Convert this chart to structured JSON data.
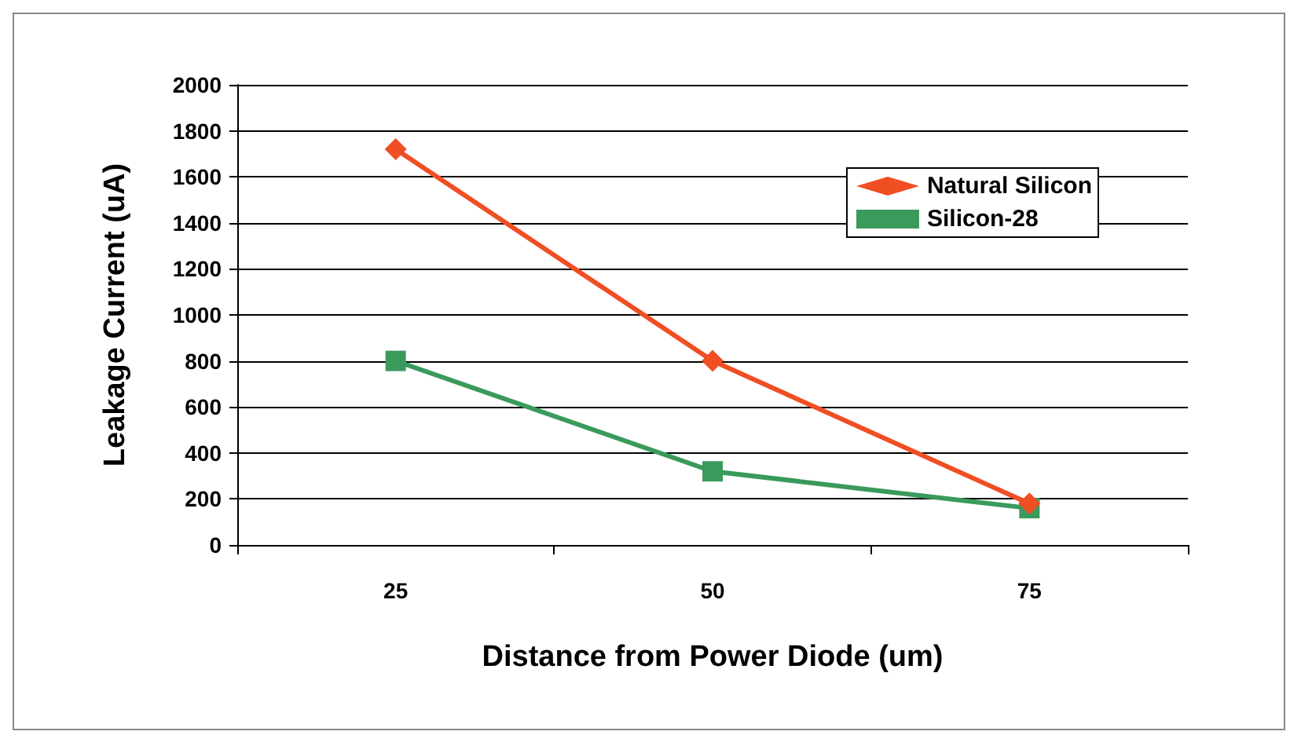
{
  "chart_data": {
    "type": "line",
    "xlabel": "Distance from Power Diode (um)",
    "ylabel": "Leakage Current (uA)",
    "categories": [
      "25",
      "50",
      "75"
    ],
    "series": [
      {
        "name": "Natural Silicon",
        "color": "#f04e23",
        "marker": "diamond",
        "values": [
          1720,
          800,
          180
        ]
      },
      {
        "name": "Silicon-28",
        "color": "#3a9a5c",
        "marker": "square",
        "values": [
          800,
          320,
          160
        ]
      }
    ],
    "ylim": [
      0,
      2000
    ],
    "yticks": [
      0,
      200,
      400,
      600,
      800,
      1000,
      1200,
      1400,
      1600,
      1800,
      2000
    ],
    "grid": "y",
    "legend": "top right"
  }
}
